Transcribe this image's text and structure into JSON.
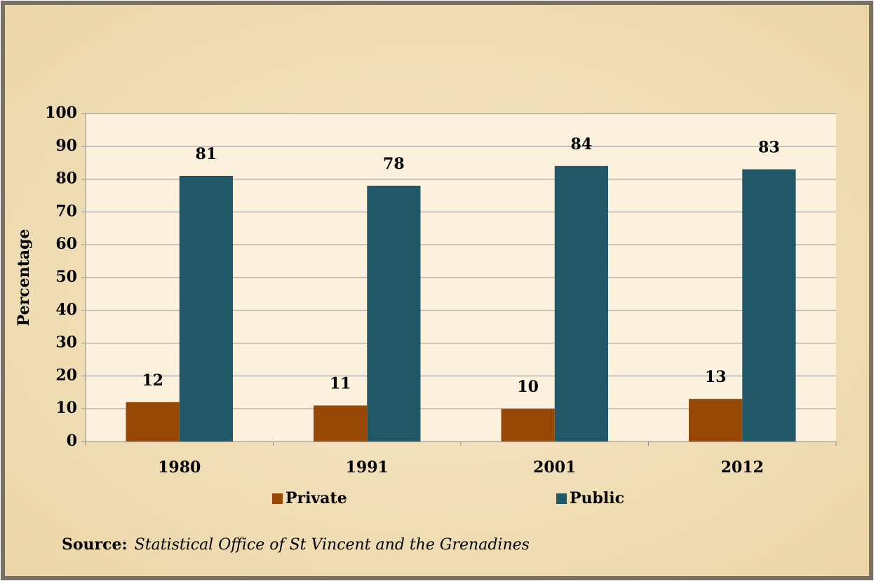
{
  "chart_data": {
    "type": "bar",
    "y_label": "Percentage",
    "categories": [
      "1980",
      "1991",
      "2001",
      "2012"
    ],
    "series": [
      {
        "name": "Private",
        "color": "#974806",
        "values": [
          12,
          11,
          10,
          13
        ]
      },
      {
        "name": "Public",
        "color": "#215868",
        "values": [
          81,
          78,
          84,
          83
        ]
      }
    ],
    "ylim": [
      0,
      100
    ],
    "yticks": [
      0,
      10,
      20,
      30,
      40,
      50,
      60,
      70,
      80,
      90,
      100
    ],
    "grid": true,
    "legend": "bottom",
    "source_label": "Source:",
    "source": "Statistical Office of St Vincent and the Grenadines"
  }
}
